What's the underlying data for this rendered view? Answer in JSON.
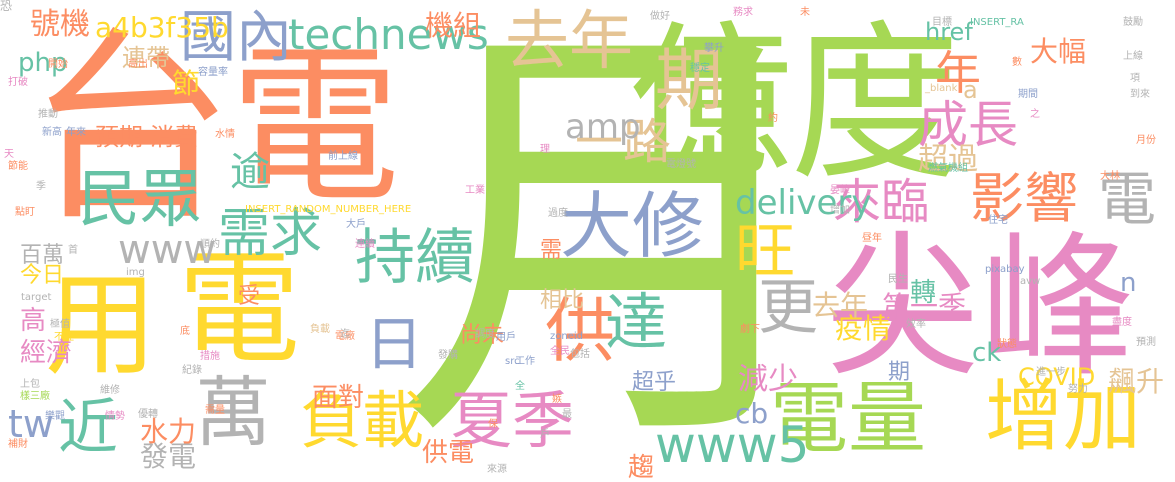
{
  "palette": {
    "orange": "#fc8d62",
    "green": "#a6d854",
    "pink": "#e78ac3",
    "yellow": "#ffd92f",
    "blue": "#8da0cb",
    "teal": "#66c2a5",
    "tan": "#e5c494",
    "gray": "#b3b3b3"
  },
  "words": [
    {
      "text": "月",
      "color": "green"
    },
    {
      "text": "台",
      "color": "orange"
    },
    {
      "text": "電",
      "color": "orange"
    },
    {
      "text": "億",
      "color": "green"
    },
    {
      "text": "度",
      "color": "green"
    },
    {
      "text": "尖峰",
      "color": "pink"
    },
    {
      "text": "用",
      "color": "yellow"
    },
    {
      "text": "電",
      "color": "yellow"
    },
    {
      "text": "電量",
      "color": "green"
    },
    {
      "text": "增加",
      "color": "yellow"
    },
    {
      "text": "去年",
      "color": "tan"
    },
    {
      "text": "期",
      "color": "tan"
    },
    {
      "text": "持續",
      "color": "teal"
    },
    {
      "text": "大修",
      "color": "blue"
    },
    {
      "text": "民眾",
      "color": "teal"
    },
    {
      "text": "萬",
      "color": "gray"
    },
    {
      "text": "負載",
      "color": "yellow"
    },
    {
      "text": "夏季",
      "color": "pink"
    },
    {
      "text": "供",
      "color": "orange"
    },
    {
      "text": "達",
      "color": "teal"
    },
    {
      "text": "國內",
      "color": "blue"
    },
    {
      "text": "technews",
      "color": "teal"
    },
    {
      "text": "一路",
      "color": "tan"
    },
    {
      "text": "旺",
      "color": "yellow"
    },
    {
      "text": "日",
      "color": "blue"
    },
    {
      "text": "近",
      "color": "teal"
    },
    {
      "text": "影響",
      "color": "orange"
    },
    {
      "text": "來臨",
      "color": "pink"
    },
    {
      "text": "更",
      "color": "gray"
    },
    {
      "text": "電",
      "color": "gray"
    },
    {
      "text": "需求",
      "color": "teal"
    },
    {
      "text": "www5",
      "color": "teal"
    },
    {
      "text": "成長",
      "color": "pink"
    },
    {
      "text": "年",
      "color": "orange"
    },
    {
      "text": "逾",
      "color": "teal"
    },
    {
      "text": "www",
      "color": "gray"
    },
    {
      "text": "delivery",
      "color": "teal"
    },
    {
      "text": "amp",
      "color": "gray"
    },
    {
      "text": "號機",
      "color": "orange"
    },
    {
      "text": "a4b3f35b",
      "color": "yellow"
    },
    {
      "text": "機組",
      "color": "orange"
    },
    {
      "text": "php",
      "color": "teal"
    },
    {
      "text": "連帶",
      "color": "tan"
    },
    {
      "text": "節",
      "color": "yellow"
    },
    {
      "text": "tw",
      "color": "blue"
    },
    {
      "text": "水力",
      "color": "orange"
    },
    {
      "text": "發電",
      "color": "gray"
    },
    {
      "text": "供電",
      "color": "orange"
    },
    {
      "text": "面對",
      "color": "orange"
    },
    {
      "text": "減少",
      "color": "pink"
    },
    {
      "text": "超乎",
      "color": "blue"
    },
    {
      "text": "cb",
      "color": "blue"
    },
    {
      "text": "趨",
      "color": "orange"
    },
    {
      "text": "尚未",
      "color": "orange"
    },
    {
      "text": "疫情",
      "color": "yellow"
    },
    {
      "text": "去年",
      "color": "tan"
    },
    {
      "text": "轉",
      "color": "teal"
    },
    {
      "text": "第一季",
      "color": "pink"
    },
    {
      "text": "超過",
      "color": "tan"
    },
    {
      "text": "大幅",
      "color": "orange"
    },
    {
      "text": "href",
      "color": "teal"
    },
    {
      "text": "a",
      "color": "tan"
    },
    {
      "text": "n",
      "color": "blue"
    },
    {
      "text": "ck",
      "color": "teal"
    },
    {
      "text": "COVID",
      "color": "yellow"
    },
    {
      "text": "飆升",
      "color": "tan"
    },
    {
      "text": "期",
      "color": "blue"
    },
    {
      "text": "相比",
      "color": "tan"
    },
    {
      "text": "需",
      "color": "orange"
    },
    {
      "text": "預期",
      "color": "orange"
    },
    {
      "text": "消費",
      "color": "orange"
    },
    {
      "text": "受",
      "color": "orange"
    },
    {
      "text": "百萬",
      "color": "gray"
    },
    {
      "text": "今日",
      "color": "yellow"
    },
    {
      "text": "高",
      "color": "pink"
    },
    {
      "text": "經濟",
      "color": "pink"
    },
    {
      "text": "新高",
      "color": "blue"
    },
    {
      "text": "打破",
      "color": "pink"
    },
    {
      "text": "推動",
      "color": "gray"
    },
    {
      "text": "容量率",
      "color": "blue"
    },
    {
      "text": "高出",
      "color": "orange"
    },
    {
      "text": "開始",
      "color": "orange"
    },
    {
      "text": "水情",
      "color": "orange"
    },
    {
      "text": "年來",
      "color": "blue"
    },
    {
      "text": "穩定",
      "color": "teal"
    },
    {
      "text": "攀升",
      "color": "blue"
    },
    {
      "text": "做好",
      "color": "gray"
    },
    {
      "text": "務求",
      "color": "pink"
    },
    {
      "text": "未",
      "color": "orange"
    },
    {
      "text": "目標",
      "color": "gray"
    },
    {
      "text": "INSERT_RA",
      "color": "teal"
    },
    {
      "text": "鼓勵",
      "color": "gray"
    },
    {
      "text": "上線",
      "color": "gray"
    },
    {
      "text": "項",
      "color": "gray"
    },
    {
      "text": "到來",
      "color": "gray"
    },
    {
      "text": "_blank",
      "color": "tan"
    },
    {
      "text": "期間",
      "color": "blue"
    },
    {
      "text": "數",
      "color": "orange"
    },
    {
      "text": "之",
      "color": "pink"
    },
    {
      "text": "約",
      "color": "orange"
    },
    {
      "text": "燃氣機組",
      "color": "teal"
    },
    {
      "text": "電燈號",
      "color": "gray"
    },
    {
      "text": "前上線",
      "color": "blue"
    },
    {
      "text": "工業",
      "color": "pink"
    },
    {
      "text": "住宅",
      "color": "blue"
    },
    {
      "text": "月份",
      "color": "orange"
    },
    {
      "text": "大林",
      "color": "orange"
    },
    {
      "text": "晏峰",
      "color": "pink"
    },
    {
      "text": "增加",
      "color": "gray"
    },
    {
      "text": "天",
      "color": "pink"
    },
    {
      "text": "節能",
      "color": "orange"
    },
    {
      "text": "季",
      "color": "gray"
    },
    {
      "text": "點盯",
      "color": "orange"
    },
    {
      "text": "理",
      "color": "pink"
    },
    {
      "text": "大戶",
      "color": "blue"
    },
    {
      "text": "過度",
      "color": "gray"
    },
    {
      "text": "連續",
      "color": "pink"
    },
    {
      "text": "首",
      "color": "gray"
    },
    {
      "text": "順約",
      "color": "gray"
    },
    {
      "text": "img",
      "color": "gray"
    },
    {
      "text": "昼年",
      "color": "orange"
    },
    {
      "text": "pixabay",
      "color": "blue"
    },
    {
      "text": "民生",
      "color": "gray"
    },
    {
      "text": "avw",
      "color": "gray"
    },
    {
      "text": "target",
      "color": "gray"
    },
    {
      "text": "極值",
      "color": "gray"
    },
    {
      "text": "不佳",
      "color": "yellow"
    },
    {
      "text": "調度",
      "color": "gray"
    },
    {
      "text": "用戶",
      "color": "blue"
    },
    {
      "text": "zoneid",
      "color": "blue"
    },
    {
      "text": "全民",
      "color": "pink"
    },
    {
      "text": "劇下",
      "color": "orange"
    },
    {
      "text": "效率",
      "color": "gray"
    },
    {
      "text": "盡度",
      "color": "pink"
    },
    {
      "text": "預測",
      "color": "gray"
    },
    {
      "text": "狀態",
      "color": "orange"
    },
    {
      "text": "進一步",
      "color": "gray"
    },
    {
      "text": "努力",
      "color": "gray"
    },
    {
      "text": "發購",
      "color": "gray"
    },
    {
      "text": "工作",
      "color": "blue"
    },
    {
      "text": "src",
      "color": "blue"
    },
    {
      "text": "全",
      "color": "teal"
    },
    {
      "text": "包括",
      "color": "gray"
    },
    {
      "text": "保",
      "color": "orange"
    },
    {
      "text": "上包",
      "color": "gray"
    },
    {
      "text": "樣三廠",
      "color": "green"
    },
    {
      "text": "補財",
      "color": "orange"
    },
    {
      "text": "樂觀",
      "color": "blue"
    },
    {
      "text": "維修",
      "color": "gray"
    },
    {
      "text": "情勢",
      "color": "pink"
    },
    {
      "text": "優轉",
      "color": "gray"
    },
    {
      "text": "底",
      "color": "orange"
    },
    {
      "text": "措施",
      "color": "pink"
    },
    {
      "text": "紀錄",
      "color": "gray"
    },
    {
      "text": "需量",
      "color": "orange"
    },
    {
      "text": "負載",
      "color": "tan"
    },
    {
      "text": "電廠",
      "color": "orange"
    },
    {
      "text": "戶",
      "color": "gray"
    },
    {
      "text": "來源",
      "color": "gray"
    },
    {
      "text": "INSERT_RANDOM_NUMBER_HERE",
      "color": "yellow"
    },
    {
      "text": "迄",
      "color": "gray"
    },
    {
      "text": "嫉",
      "color": "orange"
    },
    {
      "text": "最",
      "color": "gray"
    },
    {
      "text": "恐",
      "color": "gray"
    }
  ]
}
